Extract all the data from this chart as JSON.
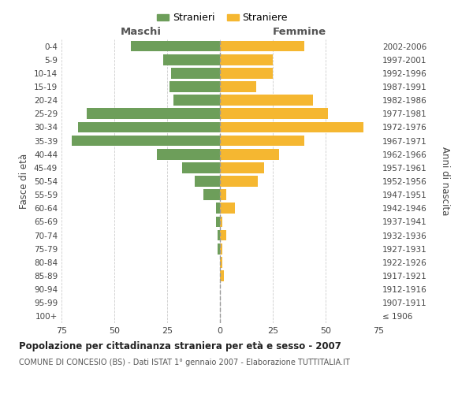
{
  "age_groups": [
    "100+",
    "95-99",
    "90-94",
    "85-89",
    "80-84",
    "75-79",
    "70-74",
    "65-69",
    "60-64",
    "55-59",
    "50-54",
    "45-49",
    "40-44",
    "35-39",
    "30-34",
    "25-29",
    "20-24",
    "15-19",
    "10-14",
    "5-9",
    "0-4"
  ],
  "birth_years": [
    "≤ 1906",
    "1907-1911",
    "1912-1916",
    "1917-1921",
    "1922-1926",
    "1927-1931",
    "1932-1936",
    "1937-1941",
    "1942-1946",
    "1947-1951",
    "1952-1956",
    "1957-1961",
    "1962-1966",
    "1967-1971",
    "1972-1976",
    "1977-1981",
    "1982-1986",
    "1987-1991",
    "1992-1996",
    "1997-2001",
    "2002-2006"
  ],
  "males": [
    0,
    0,
    0,
    0,
    0,
    1,
    1,
    2,
    2,
    8,
    12,
    18,
    30,
    70,
    67,
    63,
    22,
    24,
    23,
    27,
    42
  ],
  "females": [
    0,
    0,
    0,
    2,
    1,
    1,
    3,
    1,
    7,
    3,
    18,
    21,
    28,
    40,
    68,
    51,
    44,
    17,
    25,
    25,
    40
  ],
  "male_color": "#6d9e5a",
  "female_color": "#f5b731",
  "center_line_color": "#999999",
  "grid_color": "#cccccc",
  "background_color": "#ffffff",
  "title": "Popolazione per cittadinanza straniera per età e sesso - 2007",
  "subtitle": "COMUNE DI CONCESIO (BS) - Dati ISTAT 1° gennaio 2007 - Elaborazione TUTTITALIA.IT",
  "xlabel_left": "Maschi",
  "xlabel_right": "Femmine",
  "ylabel_left": "Fasce di età",
  "ylabel_right": "Anni di nascita",
  "xlim": 75,
  "legend_stranieri": "Stranieri",
  "legend_straniere": "Straniere"
}
